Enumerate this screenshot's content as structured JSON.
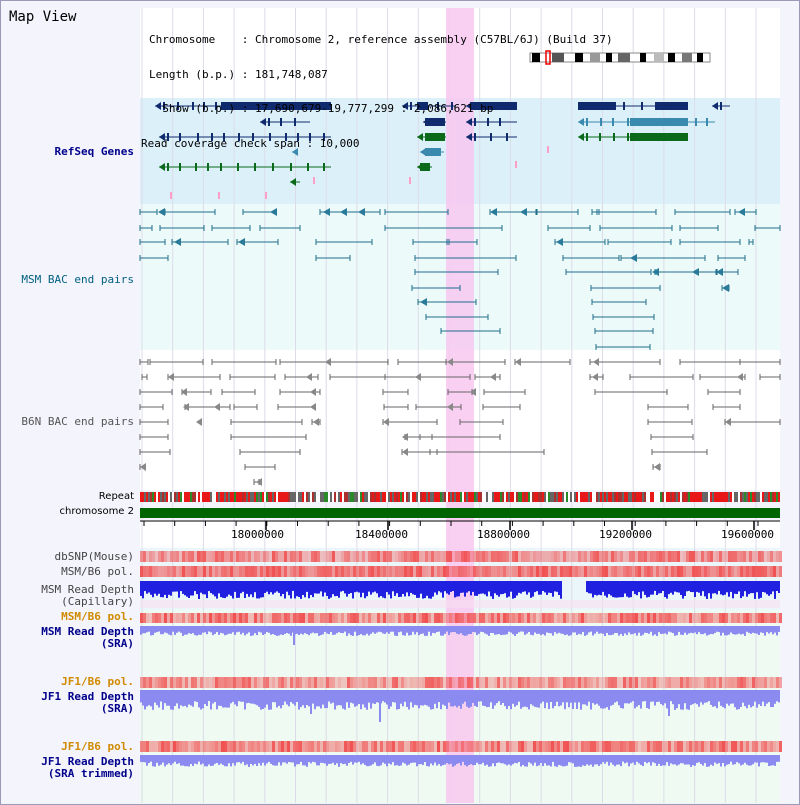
{
  "panel_title": "Map View",
  "header": {
    "chromosome_line": "Chromosome    : Chromosome 2, reference assembly (C57BL/6J) (Build 37)",
    "length_line": "Length (b.p.) : 181,748,087",
    "show_line": "  Show (b.p.) : 17,690,679-19,777,299 : 2,086,621 bp",
    "coverage_line": "Read coverage check span : 10,000"
  },
  "tracks": {
    "refseq": "RefSeq Genes",
    "msm_bac": "MSM BAC end pairs",
    "b6n_bac": "B6N BAC end pairs",
    "repeat": "Repeat",
    "chromosome": "chromosome 2",
    "dbsnp": "dbSNP(Mouse)",
    "msm_b6_pol_1": "MSM/B6 pol.",
    "msm_depth_cap_1": "MSM Read Depth",
    "msm_depth_cap_2": "(Capillary)",
    "msm_b6_pol_2": "MSM/B6 pol.",
    "msm_depth_sra_1": "MSM Read Depth",
    "msm_depth_sra_2": "(SRA)",
    "jf1_b6_pol_1": "JF1/B6 pol.",
    "jf1_depth_sra_1": "JF1 Read Depth",
    "jf1_depth_sra_2": "(SRA)",
    "jf1_b6_pol_2": "JF1/B6 pol.",
    "jf1_depth_trim_1": "JF1 Read Depth",
    "jf1_depth_trim_2": "(SRA trimmed)"
  },
  "axis": {
    "ticks": [
      "18000000",
      "18400000",
      "18800000",
      "19200000",
      "19600000"
    ]
  },
  "colors": {
    "refseq_bg": "#dcf0fa",
    "bac_bg": "#ecfafa",
    "highlight": "#f8c8f0",
    "gene_navy": "#102a6e",
    "gene_teal": "#3a8ab0",
    "gene_green": "#0a6a1a",
    "msm_line": "#1f6e8c",
    "b6n_line": "#666666",
    "chromosome_bar": "#006400",
    "read_depth_blue": "#2020e0",
    "read_depth_light": "#8a8af0",
    "pol_red": "#f05050"
  }
}
